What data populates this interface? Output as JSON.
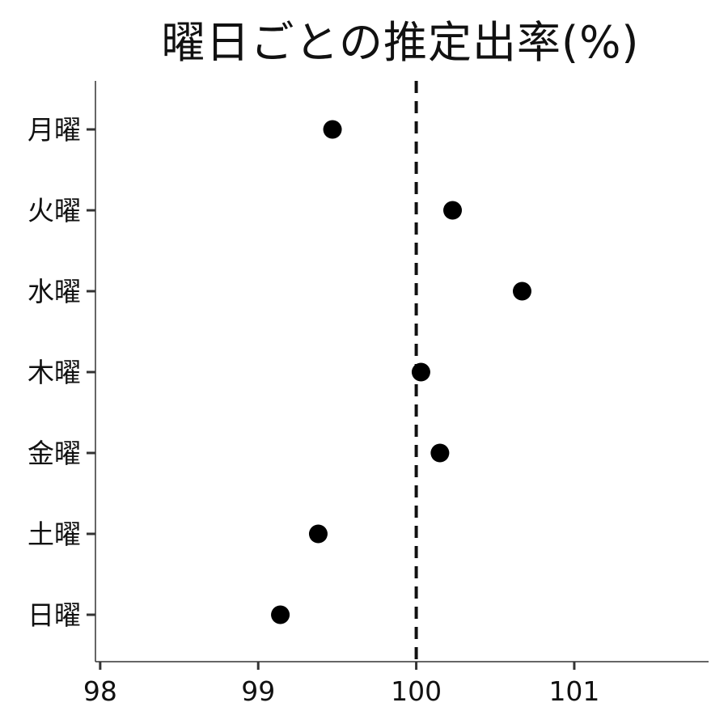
{
  "chart_data": {
    "type": "scatter",
    "title": "曜日ごとの推定出率(%)",
    "xlabel": "",
    "ylabel": "",
    "xlim": [
      97.97,
      101.85
    ],
    "x_ticks": [
      98,
      99,
      100,
      101
    ],
    "categories": [
      "月曜",
      "火曜",
      "水曜",
      "木曜",
      "金曜",
      "土曜",
      "日曜"
    ],
    "values": [
      99.47,
      100.23,
      100.67,
      100.03,
      100.15,
      99.38,
      99.14
    ],
    "reference_line": {
      "x": 100,
      "style": "dashed"
    },
    "grid": false,
    "legend": "none",
    "colors": {
      "point": "#000000",
      "axis": "#333333",
      "reference": "#111111"
    }
  }
}
